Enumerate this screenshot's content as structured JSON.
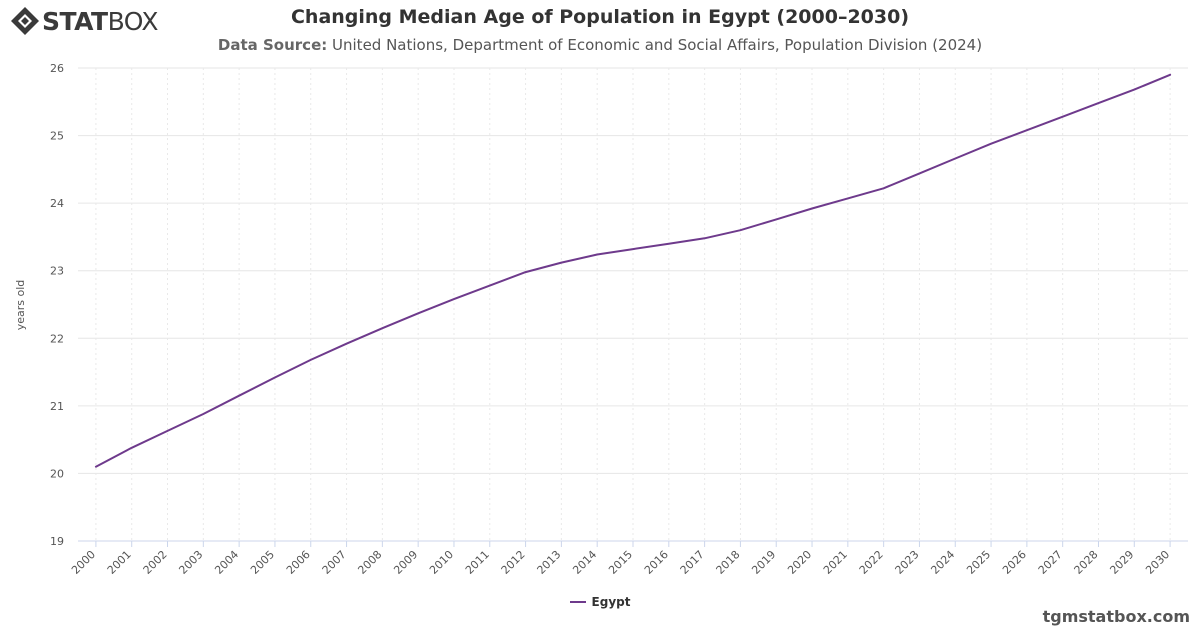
{
  "brand": {
    "logo_bold": "STAT",
    "logo_light": "BOX",
    "credit": "tgmstatbox.com"
  },
  "header": {
    "title": "Changing Median Age of Population in Egypt (2000–2030)",
    "source_label": "Data Source:",
    "source_text": "United Nations, Department of Economic and Social Affairs, Population Division (2024)"
  },
  "colors": {
    "series": "#6e3a8c",
    "grid": "#e6e6e6"
  },
  "chart_data": {
    "type": "line",
    "ylabel": "years old",
    "ylim": [
      19,
      26
    ],
    "yticks": [
      19,
      20,
      21,
      22,
      23,
      24,
      25,
      26
    ],
    "x": [
      "2000",
      "2001",
      "2002",
      "2003",
      "2004",
      "2005",
      "2006",
      "2007",
      "2008",
      "2009",
      "2010",
      "2011",
      "2012",
      "2013",
      "2014",
      "2015",
      "2016",
      "2017",
      "2018",
      "2019",
      "2020",
      "2021",
      "2022",
      "2023",
      "2024",
      "2025",
      "2026",
      "2027",
      "2028",
      "2029",
      "2030"
    ],
    "series": [
      {
        "name": "Egypt",
        "values": [
          20.1,
          20.38,
          20.63,
          20.88,
          21.15,
          21.42,
          21.68,
          21.92,
          22.15,
          22.37,
          22.58,
          22.78,
          22.98,
          23.12,
          23.24,
          23.32,
          23.4,
          23.48,
          23.6,
          23.76,
          23.92,
          24.07,
          24.22,
          24.44,
          24.66,
          24.88,
          25.08,
          25.28,
          25.48,
          25.68,
          25.9
        ]
      }
    ],
    "grid": true,
    "legend": "bottom-center"
  }
}
